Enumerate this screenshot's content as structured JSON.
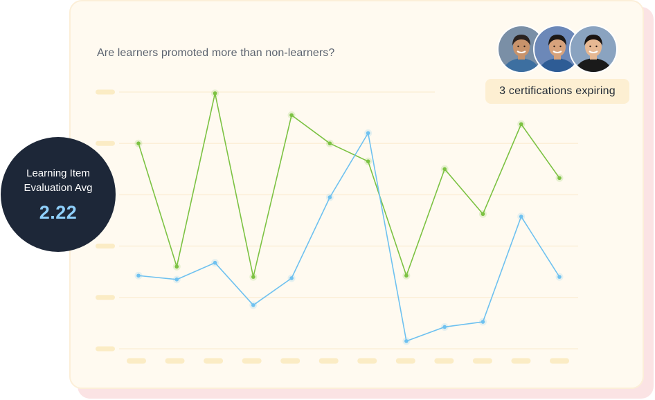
{
  "question": "Are learners promoted more than non-learners?",
  "stat": {
    "label": "Learning Item Evaluation Avg",
    "value": "2.22"
  },
  "badge": {
    "text": "3 certifications expiring"
  },
  "avatars": [
    {
      "name": "avatar-1-icon",
      "bg": "#7a8fa6",
      "skin": "#c8936b",
      "hair": "#2a2320",
      "shirt": "#3d6fa0"
    },
    {
      "name": "avatar-2-icon",
      "bg": "#6c88b8",
      "skin": "#d7a27c",
      "hair": "#1c1816",
      "shirt": "#2e5c95"
    },
    {
      "name": "avatar-3-icon",
      "bg": "#8aa3c0",
      "skin": "#e6b893",
      "hair": "#1a1412",
      "shirt": "#1a1a1a"
    }
  ],
  "colors": {
    "green": "#7cc242",
    "blue": "#6ec1f0",
    "grid": "#fcefd8",
    "tick": "#fbecc5"
  },
  "chart_data": {
    "type": "line",
    "x_points": 12,
    "y_ticks": 6,
    "ylim": [
      0,
      100
    ],
    "grid": true,
    "series": [
      {
        "color": "green",
        "values": [
          80,
          32,
          99.5,
          28,
          91,
          80,
          73,
          28.5,
          70,
          52.5,
          87.5,
          66.5
        ]
      },
      {
        "color": "blue",
        "values": [
          28.5,
          27,
          33.5,
          17,
          27.5,
          59,
          84,
          3,
          8.5,
          10.5,
          51.5,
          28
        ]
      }
    ]
  }
}
